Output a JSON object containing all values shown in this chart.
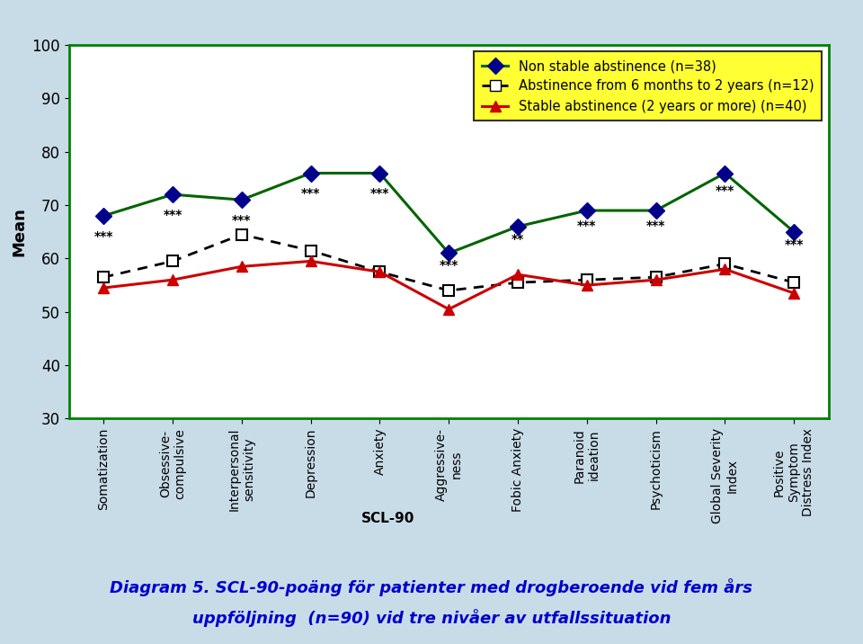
{
  "categories": [
    "Somatization",
    "Obsessive-\ncompulsive",
    "Interpersonal\nsensitivity",
    "Depression",
    "Anxiety",
    "Aggressive-\nness",
    "Fobic Anxiety",
    "Paranoid\nideation",
    "Psychoticism",
    "Global Severity\nIndex",
    "Positive\nSymptom\nDistress Index"
  ],
  "series1_label": "Non stable abstinence (n=38)",
  "series1_color": "#006400",
  "series1_marker": "D",
  "series1_marker_color": "#00008B",
  "series1_values": [
    68,
    72,
    71,
    76,
    76,
    61,
    66,
    69,
    69,
    76,
    65
  ],
  "series2_label": "Abstinence from 6 months to 2 years (n=12)",
  "series2_color": "#000000",
  "series2_marker": "s",
  "series2_marker_color": "#ffffff",
  "series2_values": [
    56.5,
    59.5,
    64.5,
    61.5,
    57.5,
    54,
    55.5,
    56,
    56.5,
    59,
    55.5
  ],
  "series3_label": "Stable abstinence (2 years or more) (n=40)",
  "series3_color": "#cc0000",
  "series3_marker": "^",
  "series3_marker_color": "#cc0000",
  "series3_values": [
    54.5,
    56,
    58.5,
    59.5,
    57.5,
    50.5,
    57,
    55,
    56,
    58,
    53.5
  ],
  "ylim": [
    30,
    100
  ],
  "yticks": [
    30,
    40,
    50,
    60,
    70,
    80,
    90,
    100
  ],
  "ylabel": "Mean",
  "xlabel": "SCL-90",
  "annotations": {
    "positions": [
      0,
      1,
      2,
      3,
      4,
      5,
      6,
      7,
      8,
      9,
      10
    ],
    "labels": [
      "***",
      "***",
      "***",
      "***",
      "***",
      "***",
      "**",
      "***",
      "***",
      "***",
      "***"
    ],
    "y_vals": [
      63,
      67,
      66,
      71,
      71,
      57.5,
      62.5,
      65,
      65,
      71.5,
      61.5
    ]
  },
  "legend_bg": "#ffff00",
  "bg_color": "#c8dce8",
  "plot_bg": "#ffffff",
  "caption_line1": "Diagram 5. SCL-90-poäng för patienter med drogberoende vid fem års",
  "caption_line2": "uppföljning  (n=90) vid tre nivåer av utfallssituation",
  "caption_bg": "#ffff99",
  "border_color": "#008000"
}
